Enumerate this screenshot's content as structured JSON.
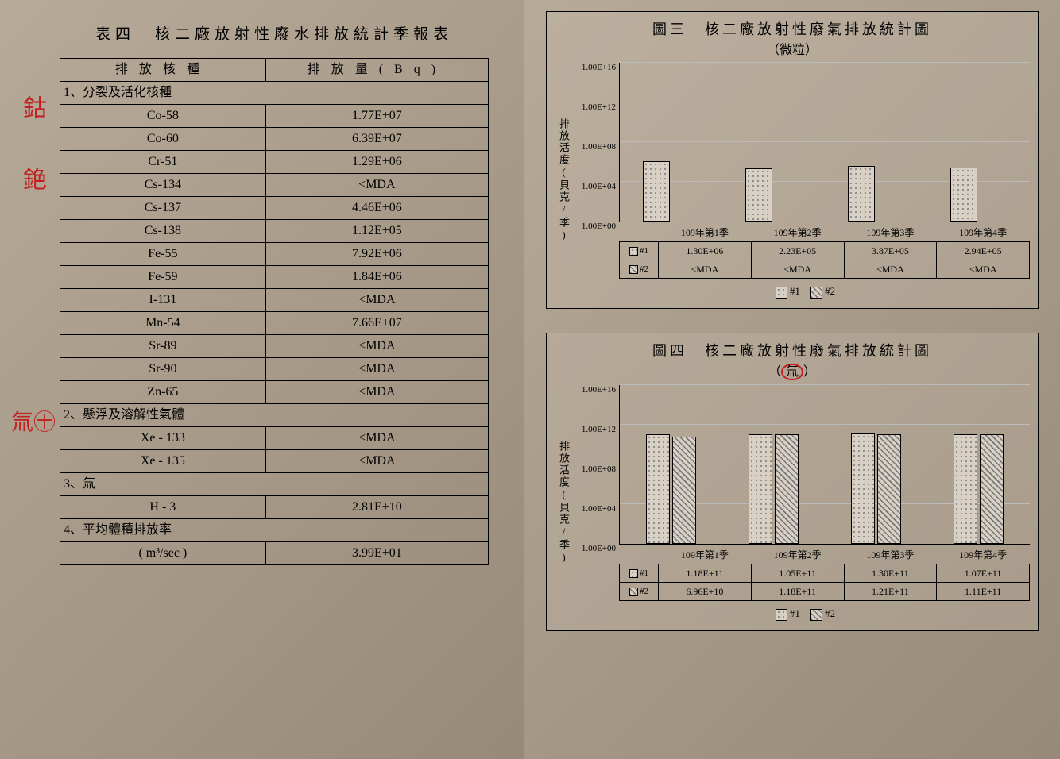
{
  "annotations": {
    "a1": "鈷",
    "a2": "銫",
    "a3": "氚㊉"
  },
  "left_page": {
    "title": "表四　核二廠放射性廢水排放統計季報表",
    "header_left": "排放核種",
    "header_right": "排放量(Bq)",
    "sections": [
      {
        "label": "1、分裂及活化核種",
        "rows": [
          {
            "n": "Co-58",
            "v": "1.77E+07"
          },
          {
            "n": "Co-60",
            "v": "6.39E+07"
          },
          {
            "n": "Cr-51",
            "v": "1.29E+06"
          },
          {
            "n": "Cs-134",
            "v": "<MDA"
          },
          {
            "n": "Cs-137",
            "v": "4.46E+06"
          },
          {
            "n": "Cs-138",
            "v": "1.12E+05"
          },
          {
            "n": "Fe-55",
            "v": "7.92E+06"
          },
          {
            "n": "Fe-59",
            "v": "1.84E+06"
          },
          {
            "n": "I-131",
            "v": "<MDA"
          },
          {
            "n": "Mn-54",
            "v": "7.66E+07"
          },
          {
            "n": "Sr-89",
            "v": "<MDA"
          },
          {
            "n": "Sr-90",
            "v": "<MDA"
          },
          {
            "n": "Zn-65",
            "v": "<MDA"
          }
        ]
      },
      {
        "label": "2、懸浮及溶解性氣體",
        "rows": [
          {
            "n": "Xe - 133",
            "v": "<MDA"
          },
          {
            "n": "Xe - 135",
            "v": "<MDA"
          }
        ]
      },
      {
        "label": "3、氚",
        "rows": [
          {
            "n": "H - 3",
            "v": "2.81E+10"
          }
        ]
      },
      {
        "label": "4、平均體積排放率",
        "rows": [
          {
            "n": "( m³/sec )",
            "v": "3.99E+01"
          }
        ]
      }
    ]
  },
  "chart_common": {
    "ylabel": "排放活度(貝克/季)",
    "legend1": "#1",
    "legend2": "#2",
    "categories": [
      "109年第1季",
      "109年第2季",
      "109年第3季",
      "109年第4季"
    ],
    "yticks": [
      "1.00E+00",
      "1.00E+04",
      "1.00E+08",
      "1.00E+12",
      "1.00E+16"
    ],
    "ylog_min": 0,
    "ylog_max": 16
  },
  "chart3": {
    "title": "圖三　核二廠放射性廢氣排放統計圖",
    "subtitle": "（微粒）",
    "series1_labels": [
      "1.30E+06",
      "2.23E+05",
      "3.87E+05",
      "2.94E+05"
    ],
    "series2_labels": [
      "<MDA",
      "<MDA",
      "<MDA",
      "<MDA"
    ],
    "series1_logvals": [
      6.114,
      5.348,
      5.588,
      5.468
    ],
    "series2_logvals": [
      0,
      0,
      0,
      0
    ]
  },
  "chart4": {
    "title": "圖四　核二廠放射性廢氣排放統計圖",
    "subtitle_plain": "（",
    "subtitle_red": "氚",
    "subtitle_end": "）",
    "series1_labels": [
      "1.18E+11",
      "1.05E+11",
      "1.30E+11",
      "1.07E+11"
    ],
    "series2_labels": [
      "6.96E+10",
      "1.18E+11",
      "1.21E+11",
      "1.11E+11"
    ],
    "series1_logvals": [
      11.07,
      11.02,
      11.11,
      11.03
    ],
    "series2_logvals": [
      10.84,
      11.07,
      11.08,
      11.05
    ]
  },
  "colors": {
    "ink": "#000000",
    "red": "#c02020",
    "paper": "#a89a88",
    "grid": "#bbbbbb"
  }
}
